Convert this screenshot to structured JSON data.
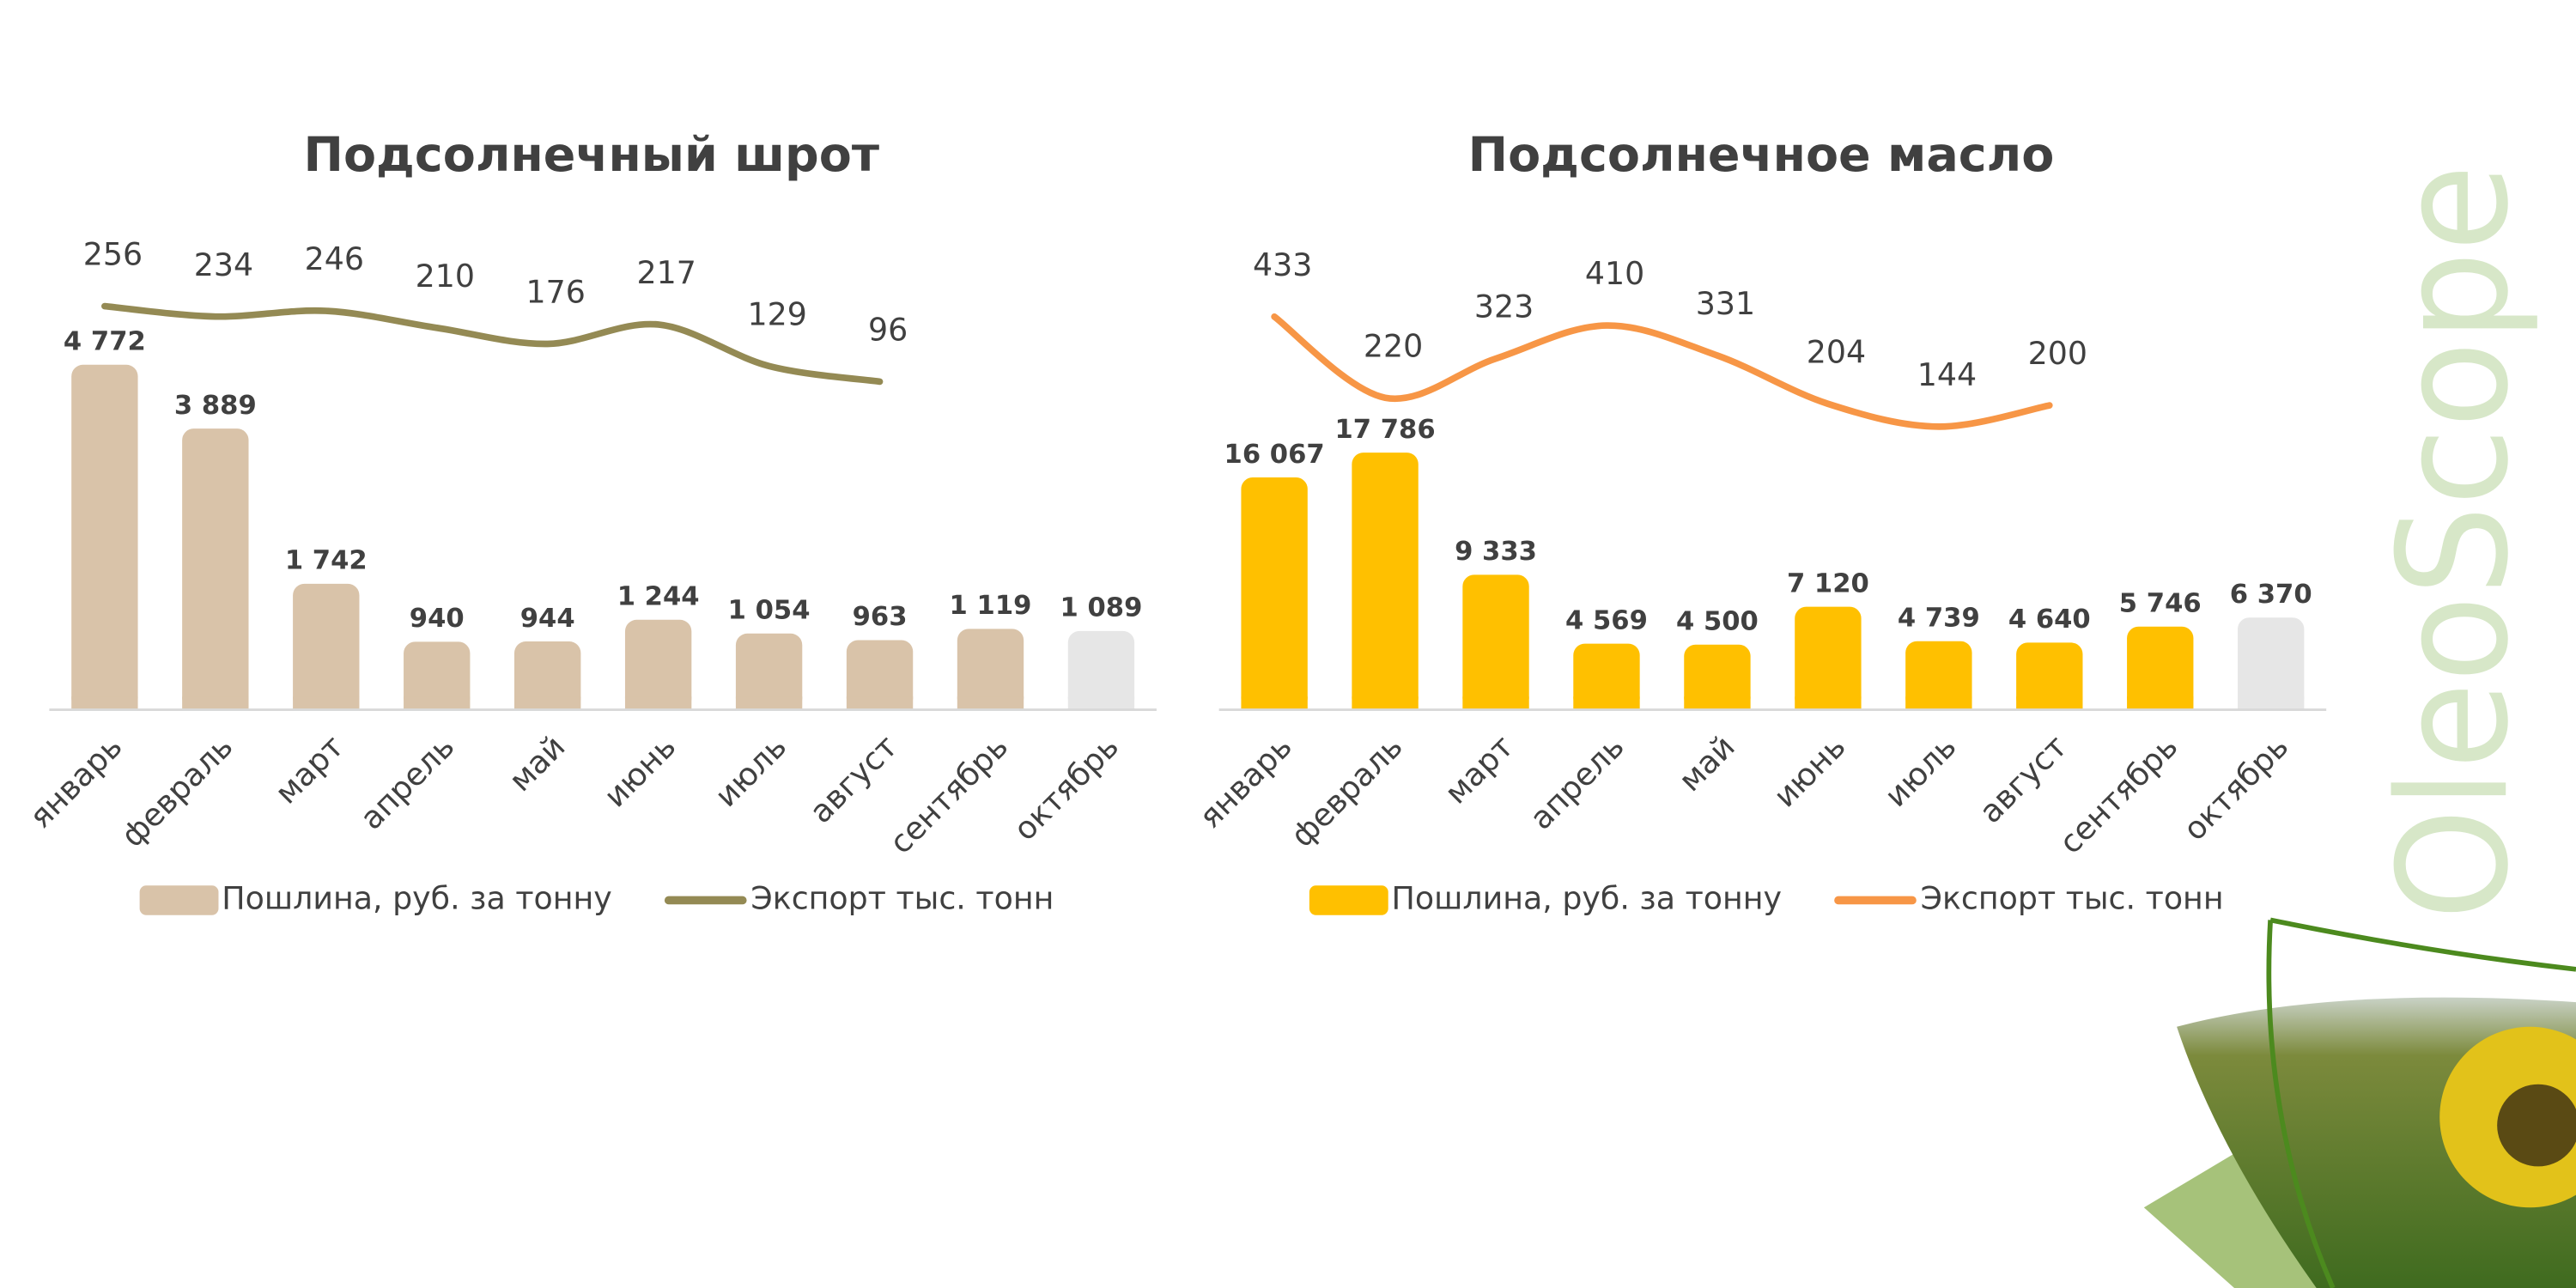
{
  "chart_data": [
    {
      "type": "bar-line",
      "title": "Подсолнечный шрот",
      "categories": [
        "январь",
        "февраль",
        "март",
        "апрель",
        "май",
        "июнь",
        "июль",
        "август",
        "сентябрь",
        "октябрь"
      ],
      "series": [
        {
          "name": "Пошлина, руб. за тонну",
          "type": "bar",
          "color": "#d9c3a9",
          "colors": [
            "#d9c3a9",
            "#d9c3a9",
            "#d9c3a9",
            "#d9c3a9",
            "#d9c3a9",
            "#d9c3a9",
            "#d9c3a9",
            "#d9c3a9",
            "#d9c3a9",
            "#e6e6e6"
          ],
          "values": [
            4772,
            3889,
            1742,
            940,
            944,
            1244,
            1054,
            963,
            1119,
            1089
          ],
          "value_labels": [
            "4 772",
            "3 889",
            "1 742",
            "940",
            "944",
            "1 244",
            "1 054",
            "963",
            "1 119",
            "1 089"
          ]
        },
        {
          "name": "Экспорт тыс. тонн",
          "type": "line",
          "axis": "y2",
          "color": "#948a54",
          "values": [
            256,
            234,
            246,
            210,
            176,
            217,
            129,
            96,
            null,
            null
          ]
        }
      ],
      "ylim": [
        0,
        6000
      ],
      "y2lim": [
        -600,
        320
      ]
    },
    {
      "type": "bar-line",
      "title": "Подсолнечное масло",
      "categories": [
        "январь",
        "февраль",
        "март",
        "апрель",
        "май",
        "июнь",
        "июль",
        "август",
        "сентябрь",
        "октябрь"
      ],
      "series": [
        {
          "name": "Пошлина, руб. за тонну",
          "type": "bar",
          "color": "#ffc000",
          "colors": [
            "#ffc000",
            "#ffc000",
            "#ffc000",
            "#ffc000",
            "#ffc000",
            "#ffc000",
            "#ffc000",
            "#ffc000",
            "#ffc000",
            "#e6e6e6"
          ],
          "values": [
            16067,
            17786,
            9333,
            4569,
            4500,
            7120,
            4739,
            4640,
            5746,
            6370
          ],
          "value_labels": [
            "16 067",
            "17 786",
            "9 333",
            "4 569",
            "4 500",
            "7 120",
            "4 739",
            "4 640",
            "5 746",
            "6 370"
          ]
        },
        {
          "name": "Экспорт тыс. тонн",
          "type": "line",
          "axis": "y2",
          "color": "#f79646",
          "values": [
            433,
            220,
            323,
            410,
            331,
            204,
            144,
            200,
            null,
            null
          ]
        }
      ],
      "ylim": [
        0,
        30000
      ],
      "y2lim": [
        -600,
        540
      ]
    }
  ],
  "brand": "OleoScope"
}
